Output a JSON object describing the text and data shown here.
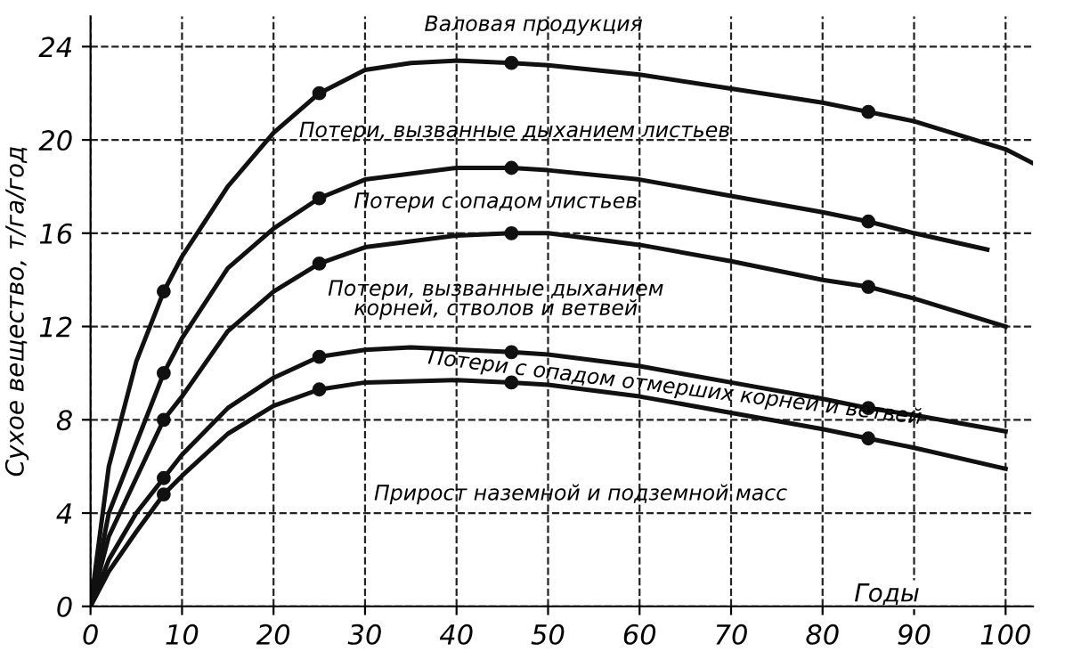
{
  "chart_data": {
    "type": "line",
    "xlabel": "Годы",
    "ylabel": "Сухое вещество, т/га/год",
    "xlim": [
      0,
      103
    ],
    "ylim": [
      0,
      25.3
    ],
    "xticks": [
      0,
      10,
      20,
      30,
      40,
      50,
      60,
      70,
      80,
      90,
      100
    ],
    "yticks": [
      0,
      4,
      8,
      12,
      16,
      20,
      24
    ],
    "grid": true,
    "marker": "none",
    "line_style": "solid",
    "series": [
      {
        "color": "#111111",
        "x": [
          0,
          2,
          5,
          8,
          10,
          15,
          20,
          25,
          30,
          35,
          40,
          46,
          50,
          60,
          70,
          80,
          85,
          90,
          100,
          103
        ],
        "values": [
          0,
          6,
          10.5,
          13.5,
          15,
          18,
          20.3,
          22,
          23,
          23.3,
          23.4,
          23.3,
          23.2,
          22.8,
          22.2,
          21.6,
          21.2,
          20.8,
          19.6,
          19
        ]
      },
      {
        "color": "#111111",
        "x": [
          0,
          2,
          5,
          8,
          10,
          15,
          20,
          25,
          30,
          40,
          46,
          50,
          60,
          70,
          80,
          85,
          90,
          98
        ],
        "values": [
          0,
          4,
          7,
          10,
          11.5,
          14.5,
          16.2,
          17.5,
          18.3,
          18.8,
          18.8,
          18.7,
          18.3,
          17.6,
          16.9,
          16.5,
          16,
          15.3
        ]
      },
      {
        "color": "#111111",
        "x": [
          0,
          2,
          5,
          8,
          10,
          15,
          20,
          25,
          30,
          40,
          46,
          50,
          60,
          70,
          80,
          85,
          90,
          100
        ],
        "values": [
          0,
          3,
          5.5,
          8,
          9,
          11.8,
          13.5,
          14.7,
          15.4,
          15.9,
          16,
          16,
          15.5,
          14.8,
          14,
          13.7,
          13.2,
          12
        ]
      },
      {
        "color": "#111111",
        "x": [
          0,
          2,
          5,
          8,
          10,
          15,
          20,
          25,
          30,
          35,
          46,
          50,
          60,
          70,
          80,
          85,
          90,
          100
        ],
        "values": [
          0,
          2,
          4,
          5.5,
          6.5,
          8.5,
          9.8,
          10.7,
          11,
          11.1,
          10.9,
          10.8,
          10.3,
          9.6,
          8.9,
          8.5,
          8.2,
          7.5
        ]
      },
      {
        "color": "#111111",
        "x": [
          0,
          2,
          5,
          8,
          10,
          15,
          20,
          25,
          30,
          40,
          46,
          50,
          60,
          70,
          80,
          85,
          90,
          100
        ],
        "values": [
          0,
          1.5,
          3.2,
          4.8,
          5.6,
          7.4,
          8.6,
          9.3,
          9.6,
          9.7,
          9.6,
          9.5,
          9,
          8.3,
          7.6,
          7.2,
          6.8,
          5.9
        ]
      },
      {
        "type": "scatter",
        "marker": "circle",
        "color": "#111111",
        "x": [
          8,
          25,
          46,
          85,
          8,
          25,
          46,
          85,
          8,
          25,
          46,
          85,
          8,
          25,
          46,
          85,
          8,
          25,
          46,
          85
        ],
        "values": [
          13.5,
          22,
          23.3,
          21.2,
          10,
          17.5,
          18.8,
          16.5,
          8,
          14.7,
          16,
          13.7,
          5.5,
          10.7,
          10.9,
          8.5,
          4.8,
          9.3,
          9.6,
          7.2
        ]
      }
    ],
    "annotations": [
      "Валовая продукция",
      "Потери, вызванные дыханием листьев",
      "Потери с опадом листьев",
      "Потери, вызванные дыханием\nкорней, стволов и ветвей",
      "Потери с опадом отмерших корней и ветвей",
      "Прирост наземной и подземной масс"
    ]
  }
}
